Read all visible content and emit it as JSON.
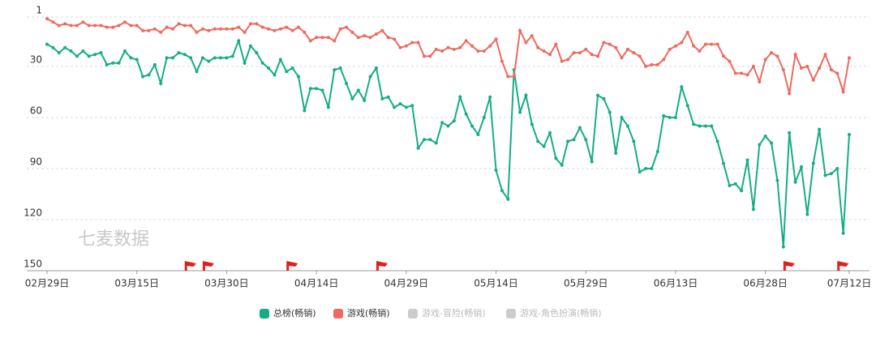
{
  "chart_data": {
    "type": "line",
    "watermark": "七麦数据",
    "categories": [
      "02月29日",
      null,
      null,
      null,
      null,
      null,
      null,
      null,
      null,
      null,
      null,
      null,
      null,
      null,
      null,
      "03月15日",
      null,
      null,
      null,
      null,
      null,
      null,
      null,
      null,
      null,
      null,
      null,
      null,
      null,
      null,
      "03月30日",
      null,
      null,
      null,
      null,
      null,
      null,
      null,
      null,
      null,
      null,
      null,
      null,
      null,
      null,
      "04月14日",
      null,
      null,
      null,
      null,
      null,
      null,
      null,
      null,
      null,
      null,
      null,
      null,
      null,
      null,
      "04月29日",
      null,
      null,
      null,
      null,
      null,
      null,
      null,
      null,
      null,
      null,
      null,
      null,
      null,
      null,
      "05月14日",
      null,
      null,
      null,
      null,
      null,
      null,
      null,
      null,
      null,
      null,
      null,
      null,
      null,
      null,
      "05月29日",
      null,
      null,
      null,
      null,
      null,
      null,
      null,
      null,
      null,
      null,
      null,
      null,
      null,
      null,
      "06月13日",
      null,
      null,
      null,
      null,
      null,
      null,
      null,
      null,
      null,
      null,
      null,
      null,
      null,
      null,
      "06月28日",
      null,
      null,
      null,
      null,
      null,
      null,
      null,
      null,
      null,
      null,
      null,
      null,
      null,
      "07月12日"
    ],
    "series": [
      {
        "name": "总榜(畅销)",
        "color": "#15ad86",
        "values": [
          17,
          19,
          22,
          19,
          21,
          24,
          21,
          24,
          23,
          22,
          29,
          28,
          28,
          21,
          25,
          26,
          36,
          35,
          29,
          40,
          25,
          25,
          22,
          23,
          25,
          33,
          25,
          27,
          25,
          25,
          25,
          24,
          15,
          28,
          18,
          22,
          28,
          31,
          35,
          26,
          33,
          31,
          36,
          56,
          43,
          43,
          44,
          54,
          32,
          31,
          40,
          49,
          44,
          50,
          36,
          31,
          49,
          48,
          54,
          52,
          54,
          53,
          78,
          73,
          73,
          75,
          63,
          65,
          62,
          48,
          58,
          65,
          70,
          60,
          48,
          91,
          103,
          108,
          32,
          57,
          47,
          64,
          74,
          77,
          69,
          84,
          88,
          74,
          73,
          66,
          73,
          86,
          47,
          49,
          57,
          81,
          60,
          65,
          74,
          92,
          90,
          90,
          80,
          59,
          60,
          60,
          42,
          53,
          64,
          65,
          65,
          65,
          74,
          87,
          100,
          99,
          103,
          85,
          114,
          76,
          71,
          75,
          97,
          136,
          69,
          98,
          89,
          117,
          87,
          67,
          94,
          93,
          90,
          128,
          70
        ]
      },
      {
        "name": "游戏(畅销)",
        "color": "#ee6a5f",
        "values": [
          2,
          4,
          6,
          5,
          6,
          6,
          4,
          6,
          6,
          6,
          7,
          7,
          6,
          4,
          6,
          6,
          9,
          9,
          8,
          10,
          7,
          8,
          5,
          6,
          6,
          10,
          8,
          9,
          8,
          8,
          8,
          8,
          7,
          10,
          5,
          5,
          7,
          8,
          9,
          8,
          7,
          9,
          7,
          10,
          15,
          13,
          13,
          13,
          15,
          8,
          7,
          10,
          13,
          12,
          13,
          11,
          9,
          13,
          14,
          19,
          18,
          16,
          16,
          24,
          24,
          20,
          21,
          19,
          20,
          19,
          15,
          18,
          21,
          21,
          18,
          14,
          27,
          36,
          36,
          9,
          16,
          12,
          19,
          21,
          23,
          17,
          27,
          26,
          22,
          22,
          20,
          23,
          24,
          16,
          17,
          19,
          25,
          20,
          22,
          24,
          30,
          29,
          29,
          26,
          20,
          18,
          16,
          10,
          18,
          21,
          17,
          17,
          17,
          24,
          27,
          34,
          34,
          35,
          30,
          39,
          26,
          22,
          24,
          32,
          46,
          23,
          31,
          30,
          38,
          31,
          23,
          32,
          34,
          45,
          25
        ]
      }
    ],
    "inactive_series": [
      {
        "name": "游戏-冒险(畅销)",
        "color": "#cccccc"
      },
      {
        "name": "游戏-角色扮演(畅销)",
        "color": "#cccccc"
      }
    ],
    "event_days": [
      23,
      26,
      40,
      55,
      123,
      132
    ],
    "event_color": "#e0201b",
    "ylim": [
      1,
      150
    ],
    "y_inverted": true,
    "yticks": [
      1,
      30,
      60,
      90,
      120,
      150
    ],
    "grid": true
  }
}
